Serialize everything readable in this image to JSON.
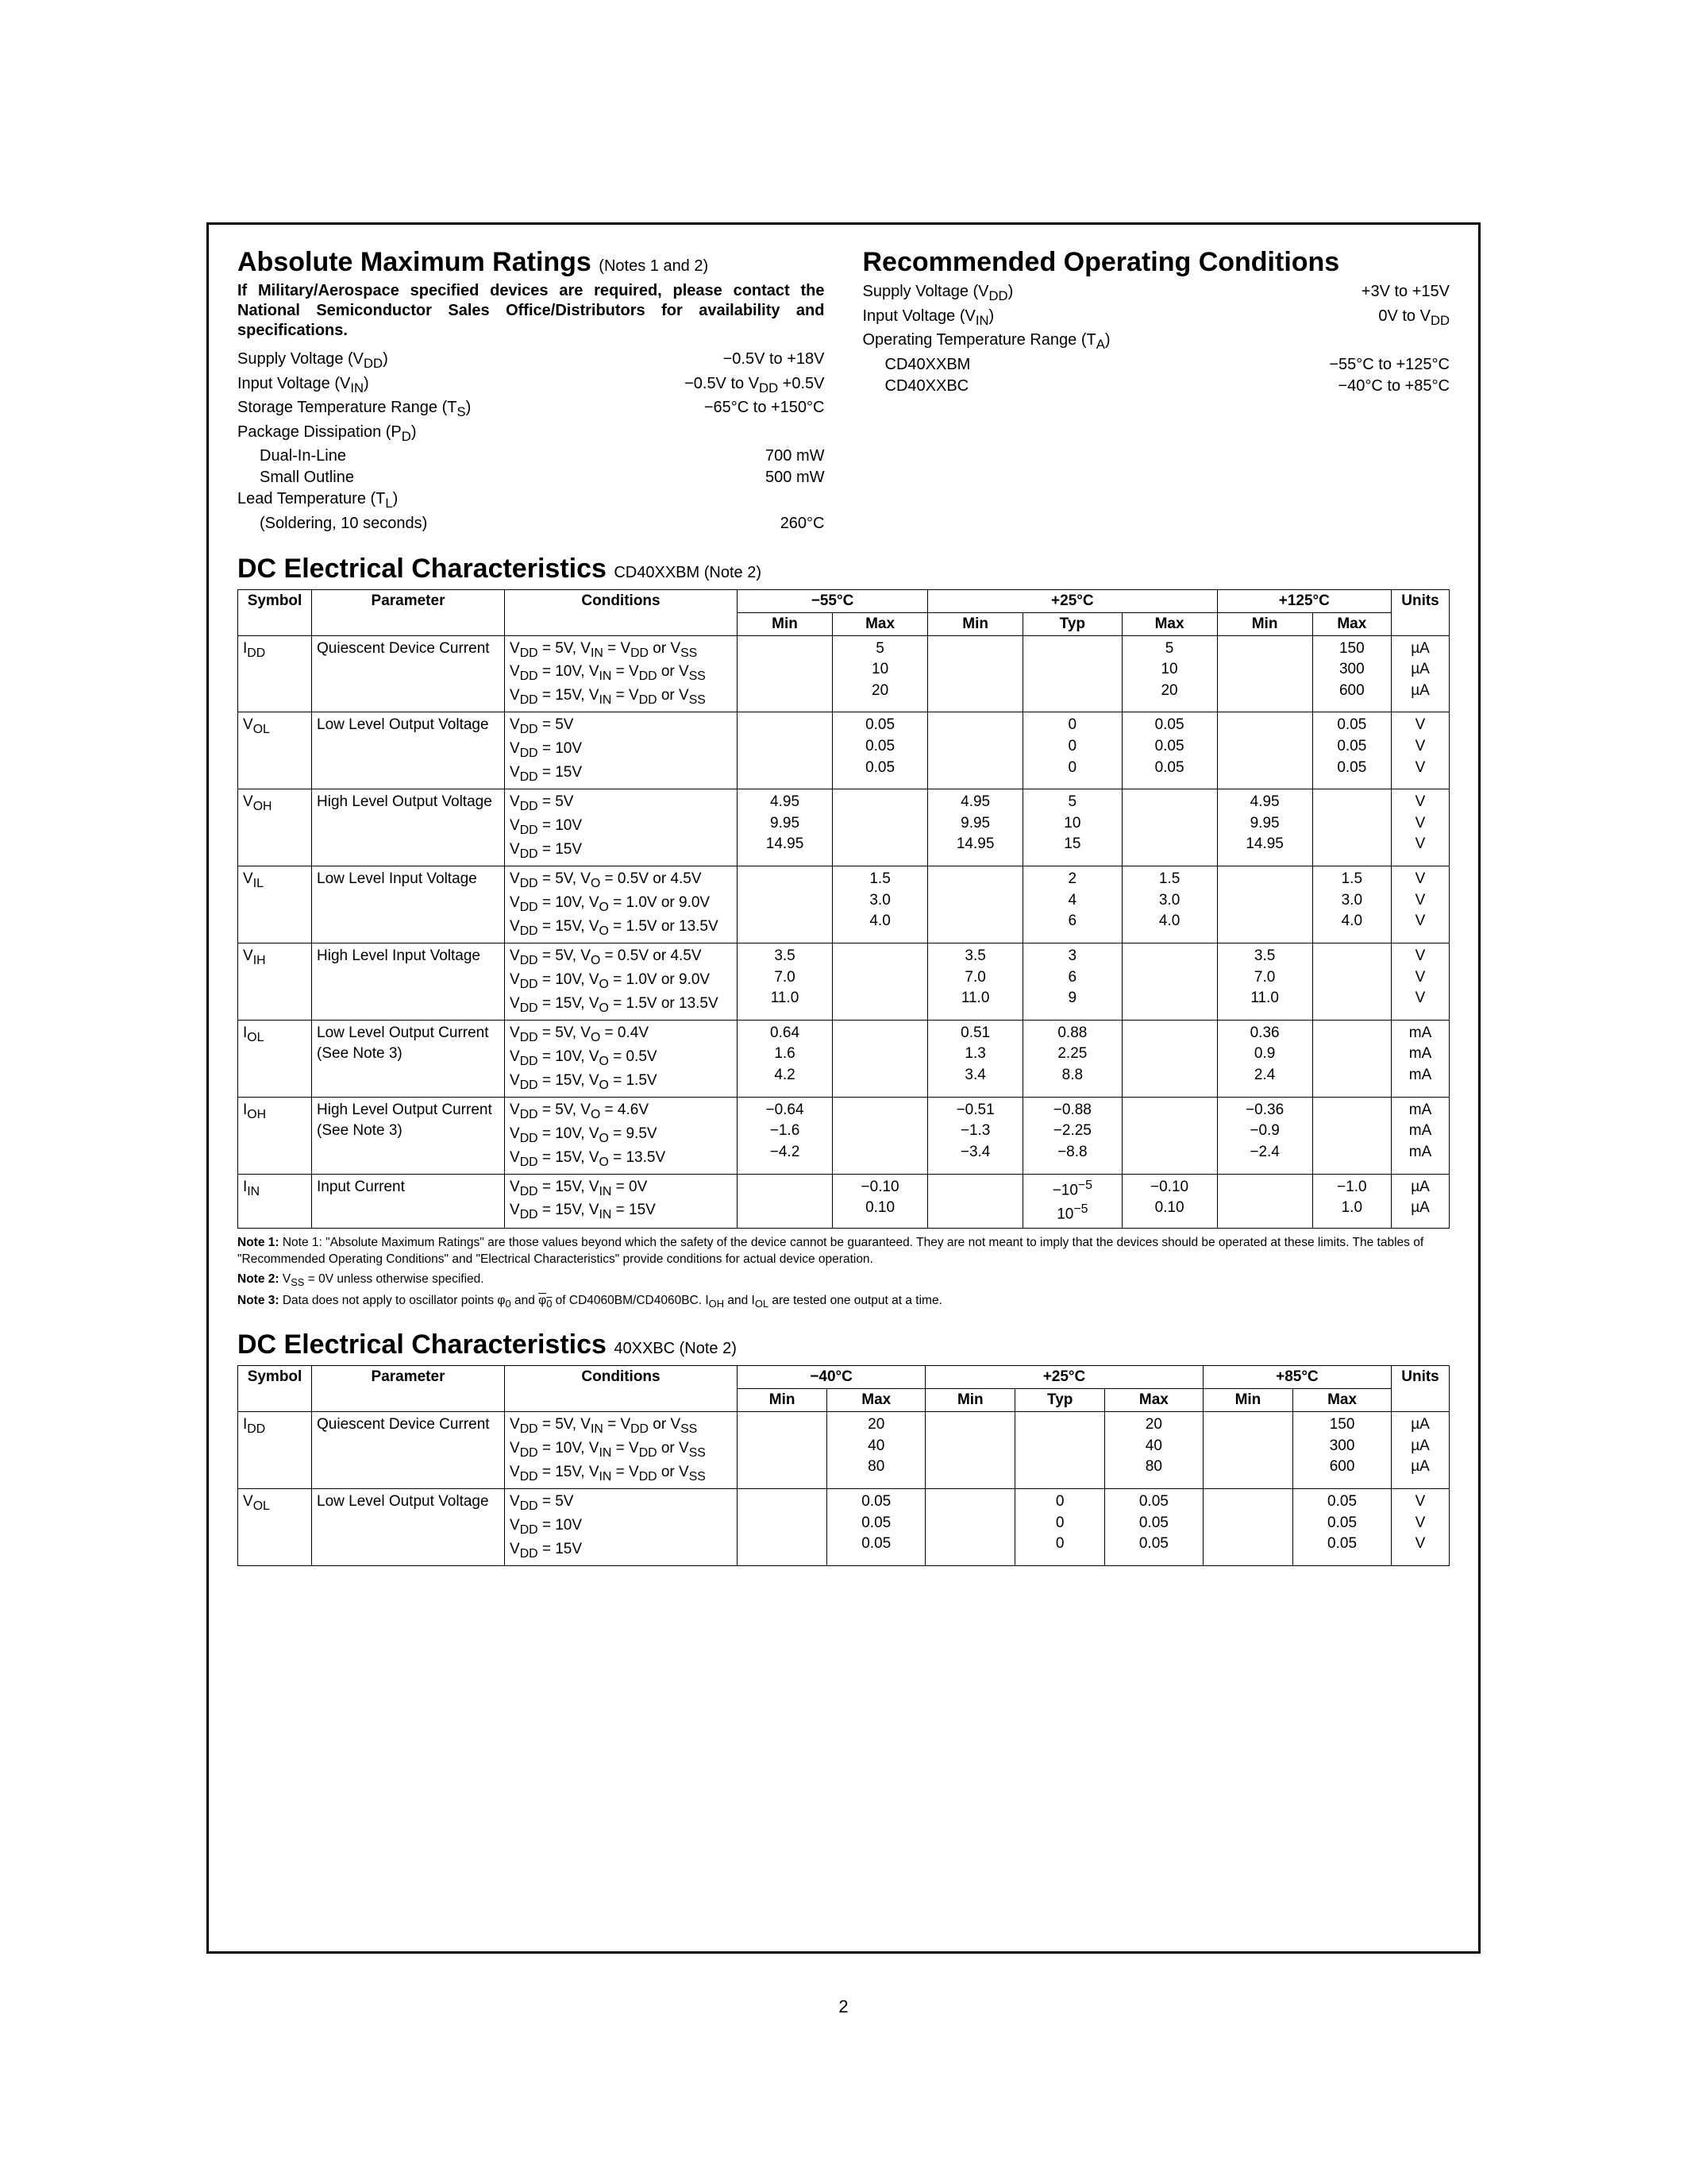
{
  "page_number": "2",
  "abs_max": {
    "title": "Absolute Maximum Ratings",
    "title_note": "(Notes 1 and 2)",
    "bold_note": "If Military/Aerospace specified devices are required, please contact the National Semiconductor Sales Office/Distributors for availability and specifications.",
    "rows": [
      {
        "label_html": "Supply Voltage (V<sub>DD</sub>)",
        "value": "−0.5V to +18V"
      },
      {
        "label_html": "Input Voltage (V<sub>IN</sub>)",
        "value_html": "−0.5V to V<sub>DD</sub> +0.5V"
      },
      {
        "label_html": "Storage Temperature Range (T<sub>S</sub>)",
        "value": "−65°C to +150°C"
      },
      {
        "label_html": "Package Dissipation (P<sub>D</sub>)",
        "value": ""
      },
      {
        "label_html": "Dual-In-Line",
        "value": "700 mW",
        "indent": true
      },
      {
        "label_html": "Small Outline",
        "value": "500 mW",
        "indent": true
      },
      {
        "label_html": "Lead Temperature (T<sub>L</sub>)",
        "value": ""
      },
      {
        "label_html": "(Soldering, 10 seconds)",
        "value": "260°C",
        "indent": true
      }
    ]
  },
  "rec_op": {
    "title": "Recommended Operating Conditions",
    "rows": [
      {
        "label_html": "Supply Voltage (V<sub>DD</sub>)",
        "value": "+3V to +15V"
      },
      {
        "label_html": "Input Voltage (V<sub>IN</sub>)",
        "value_html": "0V to V<sub>DD</sub>"
      },
      {
        "label_html": "Operating Temperature Range (T<sub>A</sub>)",
        "value": ""
      },
      {
        "label_html": "CD40XXBM",
        "value": "−55°C to +125°C",
        "indent": true
      },
      {
        "label_html": "CD40XXBC",
        "value": "−40°C to +85°C",
        "indent": true
      }
    ]
  },
  "dc1": {
    "title": "DC Electrical Characteristics",
    "subtitle": "CD40XXBM (Note 2)",
    "temp_headers": [
      "−55°C",
      "+25°C",
      "+125°C"
    ],
    "col_sym": "Symbol",
    "col_param": "Parameter",
    "col_cond": "Conditions",
    "col_min": "Min",
    "col_typ": "Typ",
    "col_max": "Max",
    "col_units": "Units",
    "rows": [
      {
        "sym_html": "I<sub>DD</sub>",
        "param": "Quiescent Device Current",
        "cond_html": "V<sub>DD</sub> = 5V, V<sub>IN</sub> = V<sub>DD</sub> or V<sub>SS</sub><br>V<sub>DD</sub> = 10V, V<sub>IN</sub> = V<sub>DD</sub> or V<sub>SS</sub><br>V<sub>DD</sub> = 15V, V<sub>IN</sub> = V<sub>DD</sub> or V<sub>SS</sub>",
        "c55_min": "",
        "c55_max": "5<br>10<br>20",
        "c25_min": "",
        "c25_typ": "",
        "c25_max": "5<br>10<br>20",
        "c125_min": "",
        "c125_max": "150<br>300<br>600",
        "units": "µA<br>µA<br>µA"
      },
      {
        "sym_html": "V<sub>OL</sub>",
        "param": "Low Level Output Voltage",
        "cond_html": "V<sub>DD</sub> = 5V<br>V<sub>DD</sub> = 10V<br>V<sub>DD</sub> = 15V",
        "c55_min": "",
        "c55_max": "0.05<br>0.05<br>0.05",
        "c25_min": "",
        "c25_typ": "0<br>0<br>0",
        "c25_max": "0.05<br>0.05<br>0.05",
        "c125_min": "",
        "c125_max": "0.05<br>0.05<br>0.05",
        "units": "V<br>V<br>V"
      },
      {
        "sym_html": "V<sub>OH</sub>",
        "param": "High Level Output Voltage",
        "cond_html": "V<sub>DD</sub> = 5V<br>V<sub>DD</sub> = 10V<br>V<sub>DD</sub> = 15V",
        "c55_min": "4.95<br>9.95<br>14.95",
        "c55_max": "",
        "c25_min": "4.95<br>9.95<br>14.95",
        "c25_typ": "5<br>10<br>15",
        "c25_max": "",
        "c125_min": "4.95<br>9.95<br>14.95",
        "c125_max": "",
        "units": "V<br>V<br>V"
      },
      {
        "sym_html": "V<sub>IL</sub>",
        "param": "Low Level Input Voltage",
        "cond_html": "V<sub>DD</sub> = 5V, V<sub>O</sub> = 0.5V or 4.5V<br>V<sub>DD</sub> = 10V, V<sub>O</sub> = 1.0V or 9.0V<br>V<sub>DD</sub> = 15V, V<sub>O</sub> = 1.5V or 13.5V",
        "c55_min": "",
        "c55_max": "1.5<br>3.0<br>4.0",
        "c25_min": "",
        "c25_typ": "2<br>4<br>6",
        "c25_max": "1.5<br>3.0<br>4.0",
        "c125_min": "",
        "c125_max": "1.5<br>3.0<br>4.0",
        "units": "V<br>V<br>V"
      },
      {
        "sym_html": "V<sub>IH</sub>",
        "param": "High Level Input Voltage",
        "cond_html": "V<sub>DD</sub> = 5V, V<sub>O</sub> = 0.5V or 4.5V<br>V<sub>DD</sub> = 10V, V<sub>O</sub> = 1.0V or 9.0V<br>V<sub>DD</sub> = 15V, V<sub>O</sub> = 1.5V or 13.5V",
        "c55_min": "3.5<br>7.0<br>11.0",
        "c55_max": "",
        "c25_min": "3.5<br>7.0<br>11.0",
        "c25_typ": "3<br>6<br>9",
        "c25_max": "",
        "c125_min": "3.5<br>7.0<br>11.0",
        "c125_max": "",
        "units": "V<br>V<br>V"
      },
      {
        "sym_html": "I<sub>OL</sub>",
        "param": "Low Level Output Current<br>(See Note 3)",
        "cond_html": "V<sub>DD</sub> = 5V, V<sub>O</sub> = 0.4V<br>V<sub>DD</sub> = 10V, V<sub>O</sub> = 0.5V<br>V<sub>DD</sub> = 15V, V<sub>O</sub> = 1.5V",
        "c55_min": "0.64<br>1.6<br>4.2",
        "c55_max": "",
        "c25_min": "0.51<br>1.3<br>3.4",
        "c25_typ": "0.88<br>2.25<br>8.8",
        "c25_max": "",
        "c125_min": "0.36<br>0.9<br>2.4",
        "c125_max": "",
        "units": "mA<br>mA<br>mA"
      },
      {
        "sym_html": "I<sub>OH</sub>",
        "param": "High Level Output Current<br>(See Note 3)",
        "cond_html": "V<sub>DD</sub> = 5V, V<sub>O</sub> = 4.6V<br>V<sub>DD</sub> = 10V, V<sub>O</sub> = 9.5V<br>V<sub>DD</sub> = 15V, V<sub>O</sub> = 13.5V",
        "c55_min": "−0.64<br>−1.6<br>−4.2",
        "c55_max": "",
        "c25_min": "−0.51<br>−1.3<br>−3.4",
        "c25_typ": "−0.88<br>−2.25<br>−8.8",
        "c25_max": "",
        "c125_min": "−0.36<br>−0.9<br>−2.4",
        "c125_max": "",
        "units": "mA<br>mA<br>mA"
      },
      {
        "sym_html": "I<sub>IN</sub>",
        "param": "Input Current",
        "cond_html": "V<sub>DD</sub> = 15V, V<sub>IN</sub> = 0V<br>V<sub>DD</sub> = 15V, V<sub>IN</sub> = 15V",
        "c55_min": "",
        "c55_max": "−0.10<br>0.10",
        "c25_min": "",
        "c25_typ": "−10<sup>−5</sup><br>10<sup>−5</sup>",
        "c25_max": "−0.10<br>0.10",
        "c125_min": "",
        "c125_max": "−1.0<br>1.0",
        "units": "µA<br>µA"
      }
    ]
  },
  "footnotes": {
    "n1": "Note 1: \"Absolute Maximum Ratings\" are those values beyond which the safety of the device cannot be guaranteed. They are not meant to imply that the devices should be operated at these limits. The tables of \"Recommended Operating Conditions\" and \"Electrical Characteristics\" provide conditions for actual device operation.",
    "n2_pre": "Note 2: ",
    "n2_html": "V<sub>SS</sub> = 0V unless otherwise specified.",
    "n3_pre": "Note 3: ",
    "n3_html": "Data does not apply to oscillator points φ<sub>0</sub> and <span class=\"overbar\">φ<sub>0</sub></span> of CD4060BM/CD4060BC. I<sub>OH</sub> and I<sub>OL</sub> are tested one output at a time."
  },
  "dc2": {
    "title": "DC Electrical Characteristics",
    "subtitle": "40XXBC (Note 2)",
    "temp_headers": [
      "−40°C",
      "+25°C",
      "+85°C"
    ],
    "rows": [
      {
        "sym_html": "I<sub>DD</sub>",
        "param": "Quiescent Device Current",
        "cond_html": "V<sub>DD</sub> = 5V, V<sub>IN</sub> = V<sub>DD</sub> or V<sub>SS</sub><br>V<sub>DD</sub> = 10V, V<sub>IN</sub> = V<sub>DD</sub> or V<sub>SS</sub><br>V<sub>DD</sub> = 15V, V<sub>IN</sub> = V<sub>DD</sub> or V<sub>SS</sub>",
        "c1_min": "",
        "c1_max": "20<br>40<br>80",
        "c2_min": "",
        "c2_typ": "",
        "c2_max": "20<br>40<br>80",
        "c3_min": "",
        "c3_max": "150<br>300<br>600",
        "units": "µA<br>µA<br>µA"
      },
      {
        "sym_html": "V<sub>OL</sub>",
        "param": "Low Level Output Voltage",
        "cond_html": "V<sub>DD</sub> = 5V<br>V<sub>DD</sub> = 10V<br>V<sub>DD</sub> = 15V",
        "c1_min": "",
        "c1_max": "0.05<br>0.05<br>0.05",
        "c2_min": "",
        "c2_typ": "0<br>0<br>0",
        "c2_max": "0.05<br>0.05<br>0.05",
        "c3_min": "",
        "c3_max": "0.05<br>0.05<br>0.05",
        "units": "V<br>V<br>V"
      }
    ]
  }
}
